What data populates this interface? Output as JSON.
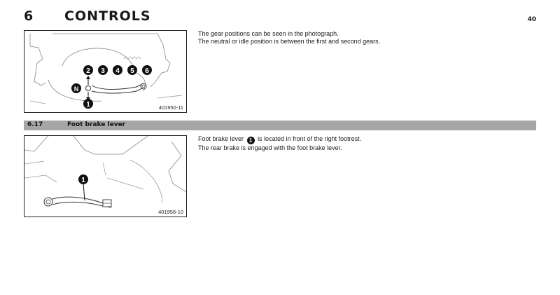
{
  "header": {
    "chapter_number": "6",
    "chapter_title": "CONTROLS",
    "page_number": "40"
  },
  "figure1": {
    "code": "401950-11",
    "labels": {
      "neutral": "N",
      "first": "1",
      "second": "2",
      "third": "3",
      "fourth": "4",
      "fifth": "5",
      "sixth": "6"
    }
  },
  "gear_text": {
    "line1": "The gear positions can be seen in the photograph.",
    "line2": "The neutral or idle position is between the first and second gears."
  },
  "section": {
    "number": "6.17",
    "title": "Foot brake lever"
  },
  "figure2": {
    "code": "401956-10",
    "label": "1"
  },
  "brake_text": {
    "line1_before": "Foot brake lever",
    "badge": "1",
    "line1_after": "is located in front of the right footrest.",
    "line2": "The rear brake is engaged with the foot brake lever."
  }
}
